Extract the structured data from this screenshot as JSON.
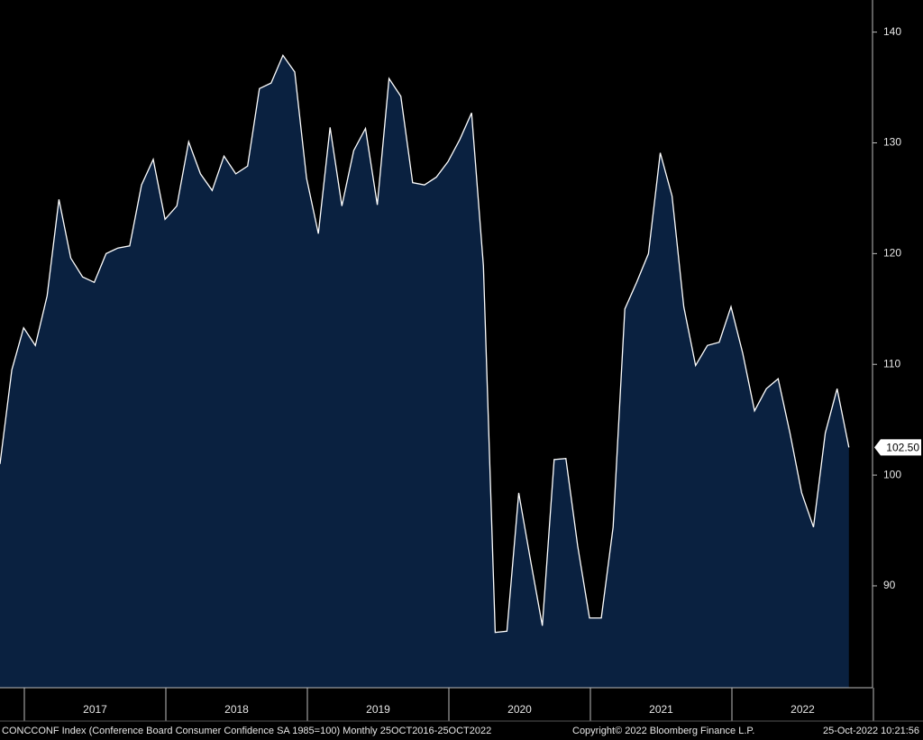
{
  "chart_data": {
    "type": "area",
    "values": [
      101.0,
      109.5,
      113.3,
      111.7,
      116.2,
      124.9,
      119.6,
      117.9,
      117.4,
      120.0,
      120.5,
      120.7,
      126.2,
      128.5,
      123.1,
      124.3,
      130.1,
      127.2,
      125.7,
      128.8,
      127.2,
      127.9,
      134.9,
      135.4,
      137.9,
      136.4,
      126.8,
      121.8,
      131.4,
      124.3,
      129.3,
      131.3,
      124.4,
      135.8,
      134.2,
      126.4,
      126.2,
      126.9,
      128.3,
      130.3,
      132.7,
      118.9,
      85.8,
      85.9,
      98.4,
      92.3,
      86.4,
      101.4,
      101.5,
      93.6,
      87.1,
      87.1,
      95.3,
      115.0,
      117.4,
      120.0,
      129.1,
      125.2,
      115.2,
      109.9,
      111.7,
      112.0,
      115.2,
      111.0,
      105.8,
      107.8,
      108.7,
      103.8,
      98.4,
      95.3,
      103.8,
      107.8,
      102.5
    ],
    "last_value_label": "102.50",
    "color": "#0a2140",
    "line_color": "#ffffff",
    "x_labels": [
      "2017",
      "2018",
      "2019",
      "2020",
      "2021",
      "2022"
    ],
    "ylim": [
      80.8,
      142.9
    ],
    "yticks": [
      90,
      100,
      110,
      120,
      130,
      140
    ],
    "axis_side": "right",
    "footer_left": "CONCCONF Index (Conference Board Consumer Confidence SA 1985=100)  Monthly 25OCT2016-25OCT2022",
    "footer_center": "Copyright© 2022 Bloomberg Finance L.P.",
    "footer_right": "25-Oct-2022 10:21:56"
  }
}
